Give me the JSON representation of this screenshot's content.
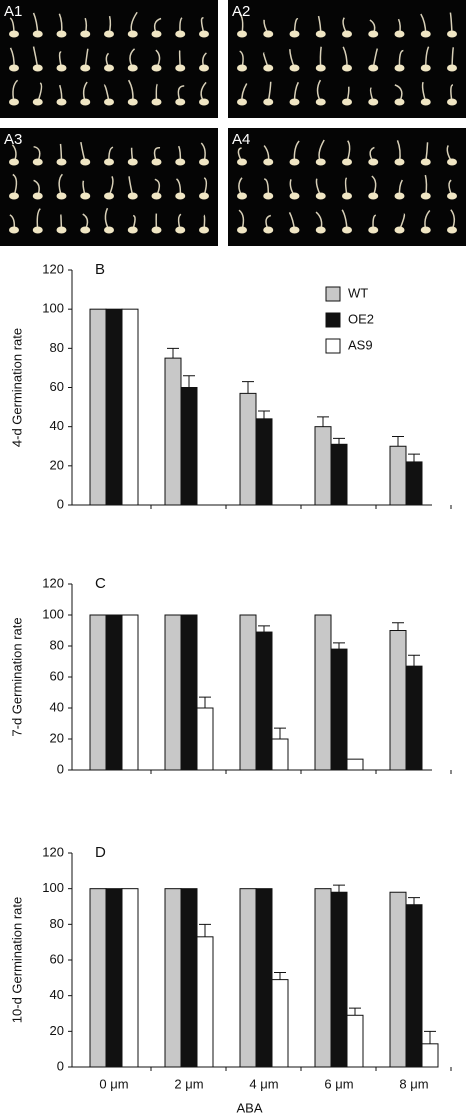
{
  "panels": [
    "A1",
    "A2",
    "A3",
    "A4"
  ],
  "chart_data": [
    {
      "type": "bar",
      "title": "B",
      "y_label": "4-d Germination rate",
      "categories": [
        null,
        null,
        null,
        null,
        null
      ],
      "series": [
        {
          "name": "WT",
          "color": "#c8c8c8",
          "values": [
            100,
            75,
            57,
            40,
            30
          ],
          "errors": [
            null,
            5,
            6,
            5,
            5
          ]
        },
        {
          "name": "OE2",
          "color": "#111111",
          "values": [
            100,
            60,
            44,
            31,
            22
          ],
          "errors": [
            null,
            6,
            4,
            3,
            4
          ]
        },
        {
          "name": "AS9",
          "color": "#ffffff",
          "values": [
            100,
            0,
            0,
            0,
            0
          ],
          "errors": [
            null,
            null,
            null,
            null,
            null
          ]
        }
      ],
      "ylim": [
        0,
        120
      ],
      "yticks": [
        0,
        20,
        40,
        60,
        80,
        100,
        120
      ],
      "legend": "top-right"
    },
    {
      "type": "bar",
      "title": "C",
      "y_label": "7-d Germination rate",
      "categories": [
        null,
        null,
        null,
        null,
        null
      ],
      "series": [
        {
          "color": "#c8c8c8",
          "values": [
            100,
            100,
            100,
            100,
            90
          ],
          "errors": [
            null,
            null,
            null,
            null,
            5
          ]
        },
        {
          "color": "#111111",
          "values": [
            100,
            100,
            89,
            78,
            67
          ],
          "errors": [
            null,
            null,
            4,
            4,
            7
          ]
        },
        {
          "color": "#ffffff",
          "values": [
            100,
            40,
            20,
            7,
            0
          ],
          "errors": [
            null,
            7,
            7,
            null,
            null
          ]
        }
      ],
      "ylim": [
        0,
        120
      ],
      "yticks": [
        0,
        20,
        40,
        60,
        80,
        100,
        120
      ]
    },
    {
      "type": "bar",
      "title": "D",
      "y_label": "10-d Germination rate",
      "x_label": "ABA",
      "categories": [
        "0 μm",
        "2 μm",
        "4 μm",
        "6 μm",
        "8 μm"
      ],
      "series": [
        {
          "color": "#c8c8c8",
          "values": [
            100,
            100,
            100,
            100,
            98
          ],
          "errors": [
            null,
            null,
            null,
            null,
            null
          ]
        },
        {
          "color": "#111111",
          "values": [
            100,
            100,
            100,
            98,
            91
          ],
          "errors": [
            null,
            null,
            null,
            4,
            4
          ]
        },
        {
          "color": "#ffffff",
          "values": [
            100,
            73,
            49,
            29,
            13
          ],
          "errors": [
            null,
            7,
            4,
            4,
            7
          ]
        }
      ],
      "ylim": [
        0,
        120
      ],
      "yticks": [
        0,
        20,
        40,
        60,
        80,
        100,
        120
      ]
    }
  ]
}
